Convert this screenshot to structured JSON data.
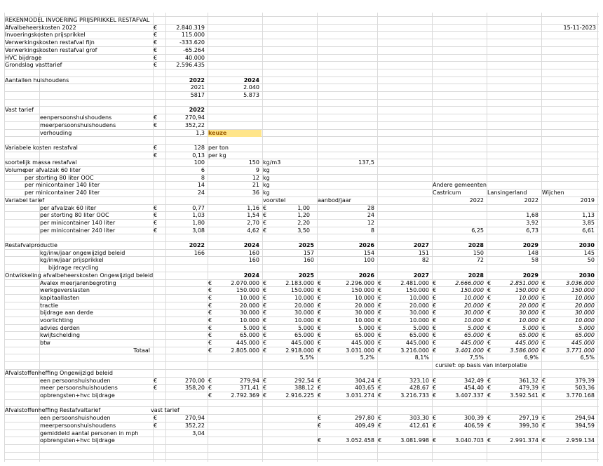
{
  "title": "REKENMODEL INVOERING PRIJSPRIKKEL RESTAFVAL",
  "date": "15-11-2023",
  "currency": "€",
  "keuze": "keuze",
  "summary": [
    {
      "label": "Afvalbeheerskosten 2022",
      "value": "2.840.319"
    },
    {
      "label": "Invoeringskosten prijsprikkel",
      "value": "115.000"
    },
    {
      "label": "Verwerkingskosten restafval fijn",
      "value": "-333.620"
    },
    {
      "label": "Verwerkingskosten restafval grof",
      "value": "-65.264"
    },
    {
      "label": "HVC bijdrage",
      "value": "40.000"
    },
    {
      "label": "Grondslag vasttarief",
      "value": "2.596.435"
    }
  ],
  "households": {
    "label": "Aantallen huishoudens",
    "years": [
      "2022",
      "2024"
    ],
    "rows": [
      [
        "2021",
        "2.040"
      ],
      [
        "5817",
        "5.873"
      ]
    ]
  },
  "vast_tarief": {
    "label": "Vast tarief",
    "year": "2022",
    "rows": [
      {
        "label": "eenpersoonshuishoudens",
        "value": "270,94"
      },
      {
        "label": "meerpersoonshuishoudens",
        "value": "352,22"
      },
      {
        "label": "verhouding",
        "value": "1,3"
      }
    ]
  },
  "variabele": {
    "label": "Variabele kosten restafval",
    "rows": [
      {
        "value": "128",
        "unit": "per ton"
      },
      {
        "value": "0,13",
        "unit": "per kg"
      }
    ]
  },
  "massa": {
    "label": "soortelijk massa restafval",
    "v1": "100",
    "v2": "150",
    "unit": "kg/m3",
    "v3": "137,5"
  },
  "volume": {
    "label": "Volume",
    "rows": [
      {
        "label": "per afvalzak 60 liter",
        "v1": "6",
        "v2": "9",
        "unit": "kg"
      },
      {
        "label": "per storting 80 liter OOC",
        "v1": "8",
        "v2": "12",
        "unit": "kg"
      },
      {
        "label": "per minicontainer 140 liter",
        "v1": "14",
        "v2": "21",
        "unit": "kg"
      },
      {
        "label": "per minicontainer 240 liter",
        "v1": "24",
        "v2": "36",
        "unit": "kg"
      }
    ]
  },
  "andere": {
    "label": "Andere gemeenten",
    "names": [
      "Castricum",
      "Lansingerland",
      "Wijchen"
    ],
    "years": [
      "2022",
      "2022",
      "2019"
    ]
  },
  "variabel_tarief": {
    "label": "Variabel tarief",
    "voorstel": "voorstel",
    "aanbod": "aanbod/jaar",
    "rows": [
      {
        "label": "per afvalzak 60 liter",
        "v1": "0,77",
        "v2": "1,16",
        "v3": "1,00",
        "a": "28",
        "c": "",
        "l": "",
        "w": ""
      },
      {
        "label": "per storting 80 liter OOC",
        "v1": "1,03",
        "v2": "1,54",
        "v3": "1,20",
        "a": "24",
        "c": "",
        "l": "1,68",
        "w": "1,13"
      },
      {
        "label": "per minicontainer 140 liter",
        "v1": "1,80",
        "v2": "2,70",
        "v3": "2,20",
        "a": "12",
        "c": "",
        "l": "3,92",
        "w": "3,85"
      },
      {
        "label": "per minicontainer 240 liter",
        "v1": "3,08",
        "v2": "4,62",
        "v3": "3,50",
        "a": "8",
        "c": "6,25",
        "l": "6,73",
        "w": "6,61"
      }
    ]
  },
  "productie": {
    "label": "Restafvalproductie",
    "years": [
      "2022",
      "2024",
      "2025",
      "2026",
      "2027",
      "2028",
      "2029",
      "2030"
    ],
    "rows": [
      {
        "label": "kg/inw/jaar ongewijzigd beleid",
        "values": [
          "166",
          "160",
          "157",
          "154",
          "151",
          "150",
          "148",
          "145"
        ]
      },
      {
        "label": "kg/inw/jaar prijsprikkel",
        "values": [
          "",
          "160",
          "160",
          "100",
          "82",
          "72",
          "58",
          "50"
        ]
      }
    ],
    "note": "bijdrage recycling"
  },
  "ontwikkeling": {
    "label": "Ontwikkeling afvalbeheerskosten Ongewijzigd beleid",
    "years": [
      "2024",
      "2025",
      "2026",
      "2027",
      "2028",
      "2029",
      "2030"
    ],
    "rows": [
      {
        "label": "Avalex meerjarenbegroting",
        "values": [
          "2.070.000",
          "2.183.000",
          "2.296.000",
          "2.481.000",
          "2.666.000",
          "2.851.000",
          "3.036.000"
        ]
      },
      {
        "label": "werkgeverslasten",
        "values": [
          "150.000",
          "150.000",
          "150.000",
          "150.000",
          "150.000",
          "150.000",
          "150.000"
        ]
      },
      {
        "label": "kapitaallasten",
        "values": [
          "10.000",
          "10.000",
          "10.000",
          "10.000",
          "10.000",
          "10.000",
          "10.000"
        ]
      },
      {
        "label": "tractie",
        "values": [
          "20.000",
          "20.000",
          "20.000",
          "20.000",
          "20.000",
          "20.000",
          "20.000"
        ]
      },
      {
        "label": "bijdrage aan derde",
        "values": [
          "30.000",
          "30.000",
          "30.000",
          "30.000",
          "30.000",
          "30.000",
          "30.000"
        ]
      },
      {
        "label": "voorlichting",
        "values": [
          "10.000",
          "10.000",
          "10.000",
          "10.000",
          "10.000",
          "10.000",
          "10.000"
        ]
      },
      {
        "label": "advies derden",
        "values": [
          "5.000",
          "5.000",
          "5.000",
          "5.000",
          "5.000",
          "5.000",
          "5.000"
        ]
      },
      {
        "label": "kwijtschelding",
        "values": [
          "65.000",
          "65.000",
          "65.000",
          "65.000",
          "65.000",
          "65.000",
          "65.000"
        ]
      },
      {
        "label": "btw",
        "values": [
          "445.000",
          "445.000",
          "445.000",
          "445.000",
          "445.000",
          "445.000",
          "445.000"
        ]
      }
    ],
    "total_label": "Totaal",
    "totals": [
      "2.805.000",
      "2.918.000",
      "3.031.000",
      "3.216.000",
      "3.401.000",
      "3.586.000",
      "3.771.000"
    ],
    "pct": [
      "",
      "5,5%",
      "5,2%",
      "8,1%",
      "7,5%",
      "6,9%",
      "6,5%"
    ],
    "note": "cursief: op basis van interpolatie"
  },
  "heffing_ong": {
    "label": "Afvalstoffenheffing Ongewijzigd beleid",
    "rows": [
      {
        "label": "een persoonshuishouden",
        "base": "270,00",
        "values": [
          "279,94",
          "292,54",
          "304,24",
          "323,10",
          "342,49",
          "361,32",
          "379,39"
        ]
      },
      {
        "label": "meer persoonshuishoudens",
        "base": "358,20",
        "values": [
          "371,41",
          "388,12",
          "403,65",
          "428,67",
          "454,40",
          "479,39",
          "503,36"
        ]
      },
      {
        "label": "opbrengsten+hvc bijdrage",
        "base": "",
        "values": [
          "2.792.369",
          "2.916.225",
          "3.031.274",
          "3.216.733",
          "3.407.337",
          "3.592.541",
          "3.770.168"
        ]
      }
    ]
  },
  "heffing_rest": {
    "label": "Afvalstoffenheffing Restafvaltarief",
    "vast_label": "vast tarief",
    "rows": [
      {
        "label": "een persoonshuishouden",
        "vast": "270,94",
        "values": [
          "",
          "",
          "297,80",
          "303,30",
          "300,39",
          "297,19",
          "294,94"
        ]
      },
      {
        "label": "meerpersoonshuishoudens",
        "vast": "352,22",
        "values": [
          "",
          "",
          "409,49",
          "412,61",
          "406,59",
          "399,30",
          "394,59"
        ]
      },
      {
        "label": "gemiddeld aantal personen in mph",
        "vast": "3,04",
        "values": [
          "",
          "",
          "",
          "",
          "",
          "",
          ""
        ]
      },
      {
        "label": "opbrengsten+hvc bijdrage",
        "vast": "",
        "values": [
          "",
          "",
          "3.052.458",
          "3.081.998",
          "3.040.703",
          "2.991.374",
          "2.959.134"
        ]
      }
    ]
  }
}
